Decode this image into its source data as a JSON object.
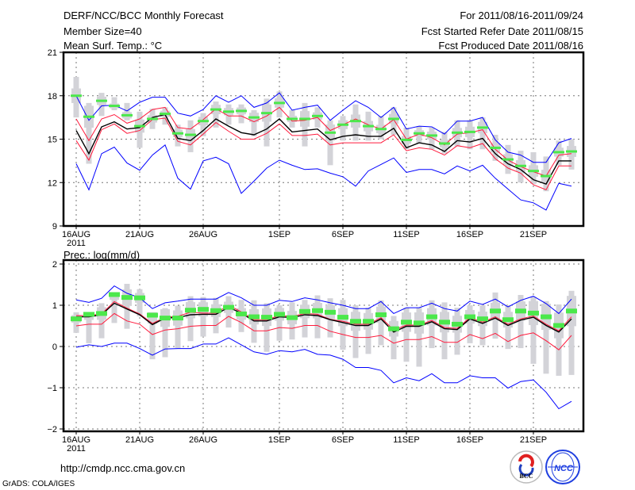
{
  "header": {
    "title": "DERF/NCC/BCC Monthly Forecast",
    "member_size": "Member Size=40",
    "variable_top": "Mean Surf. Temp.: °C",
    "period": "For 2011/08/16-2011/09/24",
    "started": "Fcst Started Refer Date 2011/08/15",
    "produced": "Fcst Produced Date 2011/08/16"
  },
  "footer": {
    "url": "http://cmdp.ncc.cma.gov.cn",
    "grads": "GrADS: COLA/IGES",
    "logo_bcc": "BCC",
    "logo_ncc": "NCC"
  },
  "colors": {
    "mean": "#000000",
    "spread": "#ff1a3c",
    "extreme": "#0000ff",
    "median": "#4be84b",
    "box": "#d3d3d8",
    "grid": "#777777"
  },
  "chart_data": [
    {
      "type": "line",
      "title": "Mean Surf. Temp.: °C",
      "xlabel": "",
      "ylabel": "",
      "x_start": "2011-08-16",
      "days": 40,
      "xticks": [
        {
          "day": 0,
          "label": "16AUG"
        },
        {
          "day": 5,
          "label": "21AUG"
        },
        {
          "day": 10,
          "label": "26AUG"
        },
        {
          "day": 16,
          "label": "1SEP"
        },
        {
          "day": 21,
          "label": "6SEP"
        },
        {
          "day": 26,
          "label": "11SEP"
        },
        {
          "day": 31,
          "label": "16SEP"
        },
        {
          "day": 36,
          "label": "21SEP"
        }
      ],
      "year_label": "2011",
      "yticks": [
        9,
        12,
        15,
        18,
        21
      ],
      "ylim": [
        9,
        21
      ],
      "grid": true,
      "series": [
        {
          "name": "upper-extreme",
          "color": "#0000ff",
          "values": [
            18.0,
            16.3,
            17.3,
            17.35,
            16.95,
            17.55,
            17.9,
            17.9,
            16.8,
            16.6,
            17.05,
            18.0,
            17.55,
            18.0,
            17.2,
            17.5,
            18.2,
            17.0,
            17.2,
            17.35,
            16.3,
            17.0,
            17.65,
            17.2,
            16.5,
            17.2,
            15.7,
            15.9,
            15.85,
            15.35,
            16.25,
            16.25,
            16.5,
            14.95,
            14.1,
            13.9,
            13.4,
            13.4,
            14.75,
            15.05
          ]
        },
        {
          "name": "upper-spread",
          "color": "#ff1a3c",
          "values": [
            16.4,
            14.9,
            16.4,
            16.7,
            16.1,
            16.4,
            17.05,
            17.2,
            15.8,
            15.7,
            16.35,
            17.1,
            16.6,
            16.6,
            16.2,
            16.6,
            17.2,
            16.25,
            16.3,
            16.5,
            15.6,
            16.0,
            16.4,
            16.0,
            15.7,
            16.35,
            15.0,
            15.35,
            15.1,
            14.6,
            15.35,
            15.45,
            15.65,
            14.3,
            13.55,
            13.1,
            12.75,
            12.45,
            13.9,
            14.0
          ]
        },
        {
          "name": "ensemble-mean",
          "color": "#000000",
          "values": [
            15.6,
            14.0,
            15.85,
            16.2,
            15.7,
            15.8,
            16.5,
            16.7,
            15.05,
            14.9,
            15.6,
            16.4,
            15.9,
            15.45,
            15.3,
            15.7,
            16.4,
            15.5,
            15.6,
            15.7,
            14.95,
            15.2,
            15.3,
            15.2,
            15.2,
            15.75,
            14.4,
            14.75,
            14.6,
            14.15,
            14.9,
            14.8,
            15.05,
            14.0,
            13.3,
            12.9,
            12.2,
            11.9,
            13.5,
            13.5
          ]
        },
        {
          "name": "lower-spread",
          "color": "#ff1a3c",
          "values": [
            14.9,
            13.55,
            15.65,
            16.05,
            15.4,
            15.6,
            16.35,
            16.45,
            14.85,
            14.6,
            15.35,
            16.15,
            15.55,
            15.0,
            15.0,
            15.4,
            16.05,
            15.25,
            15.25,
            15.35,
            14.6,
            14.75,
            14.75,
            14.75,
            14.75,
            15.3,
            14.2,
            14.4,
            14.3,
            13.9,
            14.55,
            14.4,
            14.7,
            13.65,
            13.0,
            12.65,
            11.85,
            11.5,
            13.15,
            13.15
          ]
        },
        {
          "name": "lower-extreme",
          "color": "#0000ff",
          "values": [
            13.3,
            11.5,
            14.0,
            14.45,
            13.35,
            12.85,
            13.9,
            14.6,
            12.3,
            11.55,
            13.5,
            13.75,
            13.3,
            11.25,
            12.1,
            13.0,
            13.55,
            13.2,
            12.9,
            12.95,
            12.65,
            12.4,
            11.75,
            12.8,
            13.25,
            13.7,
            12.7,
            12.9,
            12.9,
            12.6,
            13.15,
            12.8,
            13.2,
            12.3,
            11.55,
            10.8,
            10.6,
            10.1,
            11.95,
            11.75
          ]
        }
      ],
      "median": [
        18.0,
        16.55,
        17.65,
        17.3,
        16.65,
        15.9,
        16.4,
        16.75,
        15.4,
        15.3,
        16.25,
        17.05,
        16.9,
        16.95,
        16.5,
        16.8,
        17.5,
        16.4,
        16.4,
        16.6,
        15.45,
        16.0,
        16.25,
        15.9,
        15.7,
        16.4,
        14.95,
        15.4,
        15.25,
        14.7,
        15.45,
        15.5,
        15.8,
        14.4,
        13.6,
        13.15,
        12.8,
        12.45,
        14.1,
        14.15
      ],
      "box_min": [
        16.5,
        13.3,
        16.6,
        17.0,
        16.3,
        14.4,
        15.7,
        16.0,
        14.5,
        14.1,
        15.2,
        15.8,
        16.0,
        16.1,
        15.2,
        14.5,
        16.5,
        15.8,
        14.5,
        15.8,
        13.2,
        14.9,
        14.9,
        14.9,
        15.0,
        15.3,
        14.3,
        14.7,
        14.3,
        14.0,
        14.5,
        14.3,
        14.3,
        13.5,
        12.6,
        12.0,
        11.9,
        11.4,
        13.2,
        12.9
      ],
      "box_max": [
        19.3,
        17.5,
        18.2,
        17.9,
        17.5,
        16.9,
        17.1,
        17.2,
        16.0,
        16.3,
        16.8,
        17.6,
        17.4,
        17.4,
        17.0,
        17.8,
        18.3,
        17.0,
        17.5,
        17.2,
        16.3,
        16.6,
        17.4,
        16.9,
        16.6,
        17.2,
        15.8,
        15.9,
        15.8,
        15.5,
        16.3,
        16.3,
        16.5,
        15.3,
        14.6,
        14.2,
        14.1,
        13.8,
        14.9,
        15.0
      ]
    },
    {
      "type": "line",
      "title": "Prec.: log(mm/d)",
      "xlabel": "",
      "ylabel": "",
      "x_start": "2011-08-16",
      "days": 40,
      "xticks": [
        {
          "day": 0,
          "label": "16AUG"
        },
        {
          "day": 5,
          "label": "21AUG"
        },
        {
          "day": 10,
          "label": "26AUG"
        },
        {
          "day": 16,
          "label": "1SEP"
        },
        {
          "day": 21,
          "label": "6SEP"
        },
        {
          "day": 26,
          "label": "11SEP"
        },
        {
          "day": 31,
          "label": "16SEP"
        },
        {
          "day": 36,
          "label": "21SEP"
        }
      ],
      "year_label": "2011",
      "yticks": [
        -2,
        -1,
        0,
        1,
        2
      ],
      "ylim": [
        -2,
        2
      ],
      "grid": true,
      "series": [
        {
          "name": "upper-extreme",
          "color": "#0000ff",
          "values": [
            1.13,
            1.07,
            1.17,
            1.47,
            1.29,
            1.18,
            0.92,
            1.06,
            1.1,
            1.15,
            1.15,
            1.15,
            1.31,
            1.18,
            1.0,
            1.0,
            1.12,
            1.09,
            1.18,
            1.13,
            1.06,
            1.0,
            0.92,
            0.92,
            1.09,
            0.8,
            0.94,
            0.94,
            1.05,
            0.92,
            0.86,
            1.1,
            1.02,
            1.15,
            0.96,
            1.12,
            1.22,
            1.04,
            0.8,
            1.15
          ]
        },
        {
          "name": "upper-spread",
          "color": "#ff1a3c",
          "values": [
            0.75,
            0.75,
            0.79,
            1.09,
            0.93,
            0.79,
            0.56,
            0.71,
            0.73,
            0.83,
            0.81,
            0.81,
            1.0,
            0.84,
            0.65,
            0.65,
            0.75,
            0.73,
            0.8,
            0.78,
            0.66,
            0.61,
            0.54,
            0.54,
            0.7,
            0.4,
            0.52,
            0.52,
            0.63,
            0.46,
            0.44,
            0.7,
            0.59,
            0.72,
            0.54,
            0.67,
            0.74,
            0.54,
            0.38,
            0.72
          ]
        },
        {
          "name": "ensemble-mean",
          "color": "#000000",
          "values": [
            0.72,
            0.72,
            0.77,
            1.05,
            0.91,
            0.77,
            0.53,
            0.69,
            0.7,
            0.77,
            0.78,
            0.78,
            0.95,
            0.81,
            0.62,
            0.62,
            0.72,
            0.7,
            0.77,
            0.75,
            0.65,
            0.58,
            0.51,
            0.51,
            0.67,
            0.35,
            0.49,
            0.49,
            0.6,
            0.43,
            0.41,
            0.67,
            0.56,
            0.69,
            0.51,
            0.64,
            0.71,
            0.51,
            0.35,
            0.67
          ]
        },
        {
          "name": "lower-spread",
          "color": "#ff1a3c",
          "values": [
            0.5,
            0.54,
            0.54,
            0.8,
            0.62,
            0.54,
            0.29,
            0.4,
            0.43,
            0.49,
            0.51,
            0.51,
            0.73,
            0.58,
            0.38,
            0.38,
            0.46,
            0.44,
            0.51,
            0.51,
            0.37,
            0.29,
            0.22,
            0.22,
            0.27,
            0.08,
            0.17,
            0.17,
            0.24,
            0.1,
            0.1,
            0.29,
            0.19,
            0.32,
            0.12,
            0.27,
            0.33,
            0.14,
            -0.08,
            0.27
          ]
        },
        {
          "name": "lower-extreme",
          "color": "#0000ff",
          "values": [
            -0.02,
            0.04,
            0.0,
            0.08,
            0.08,
            -0.05,
            -0.21,
            -0.06,
            -0.05,
            -0.05,
            0.06,
            0.06,
            0.21,
            0.04,
            -0.13,
            -0.19,
            -0.1,
            -0.13,
            -0.07,
            -0.19,
            -0.21,
            -0.31,
            -0.51,
            -0.51,
            -0.58,
            -0.88,
            -0.76,
            -0.83,
            -0.66,
            -0.88,
            -0.88,
            -0.71,
            -0.76,
            -0.76,
            -1.01,
            -0.85,
            -0.81,
            -1.11,
            -1.51,
            -1.33
          ]
        }
      ],
      "median": [
        0.67,
        0.78,
        0.8,
        1.26,
        1.19,
        1.18,
        0.76,
        0.69,
        0.69,
        0.88,
        0.9,
        0.87,
        0.95,
        0.79,
        0.72,
        0.71,
        0.78,
        0.7,
        0.85,
        0.87,
        0.83,
        0.71,
        0.61,
        0.61,
        0.77,
        0.43,
        0.59,
        0.57,
        0.72,
        0.59,
        0.54,
        0.72,
        0.67,
        0.86,
        0.65,
        0.86,
        0.81,
        0.72,
        0.51,
        0.86
      ],
      "box_min": [
        0.33,
        0.08,
        0.2,
        0.57,
        0.43,
        0.73,
        -0.31,
        -0.26,
        -0.04,
        0.13,
        0.24,
        0.32,
        0.46,
        0.35,
        0.09,
        -0.13,
        0.14,
        0.17,
        0.22,
        0.2,
        0.22,
        -0.08,
        -0.28,
        -0.18,
        0.03,
        -0.31,
        -0.37,
        -0.49,
        -0.04,
        -0.31,
        -0.2,
        0.08,
        0.03,
        0.19,
        -0.06,
        -0.04,
        -0.42,
        -0.66,
        -0.71,
        -0.69
      ],
      "box_max": [
        0.83,
        0.83,
        1.05,
        1.29,
        1.52,
        1.39,
        0.83,
        0.93,
        0.99,
        1.22,
        1.2,
        1.18,
        1.22,
        1.13,
        1.12,
        1.05,
        1.0,
        1.07,
        1.13,
        1.24,
        1.17,
        1.13,
        1.0,
        0.94,
        1.12,
        0.74,
        0.94,
        0.94,
        1.12,
        1.07,
        0.94,
        1.0,
        1.0,
        1.31,
        1.0,
        1.25,
        1.2,
        1.1,
        1.02,
        1.35
      ]
    }
  ]
}
